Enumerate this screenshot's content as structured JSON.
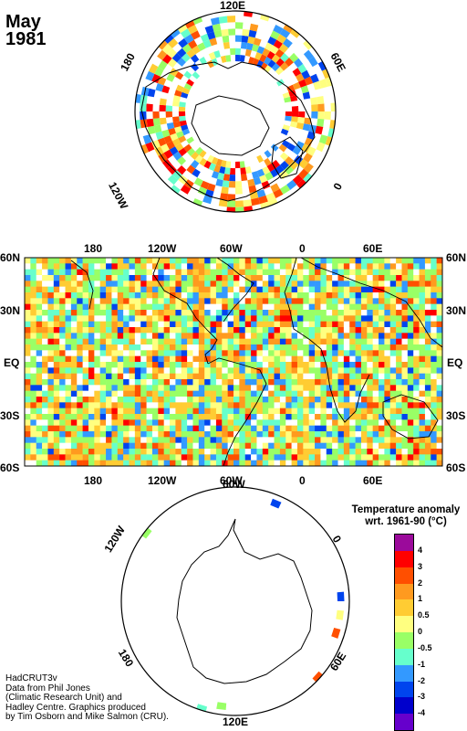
{
  "header": {
    "month": "May",
    "year": "1981"
  },
  "north_pole_labels": {
    "lon_120e": "120E",
    "lon_180": "180",
    "lon_60e": "60E",
    "lon_120w": "120W",
    "lon_0": "0"
  },
  "map_labels": {
    "lon_ticks": [
      "180",
      "120W",
      "60W",
      "0",
      "60E"
    ],
    "lat_ticks": [
      "60N",
      "30N",
      "EQ",
      "30S",
      "60S"
    ]
  },
  "south_pole_labels": {
    "lon_120w": "120W",
    "lon_60w": "60W",
    "lon_0": "0",
    "lon_180": "180",
    "lon_60e": "60E",
    "lon_120e": "120E"
  },
  "legend": {
    "title_line1": "Temperature anomaly",
    "title_line2": "wrt. 1961-90  (°C)",
    "labels": [
      "4",
      "3",
      "2",
      "1",
      "0.5",
      "0",
      "-0.5",
      "-1",
      "-2",
      "-3",
      "-4"
    ],
    "colors": [
      "#9b0a9b",
      "#ff0000",
      "#ff4f00",
      "#ff9a1f",
      "#ffcc33",
      "#ffff80",
      "#99ff66",
      "#66ffcc",
      "#3399ff",
      "#0044ee",
      "#0000cc",
      "#6600cc"
    ]
  },
  "footer": {
    "line1": "HadCRUT3v",
    "line2": "Data from Phil Jones",
    "line3": "(Climatic Research Unit) and",
    "line4": "Hadley Centre.  Graphics produced",
    "line5": "by Tim Osborn and Mike Salmon (CRU)."
  }
}
